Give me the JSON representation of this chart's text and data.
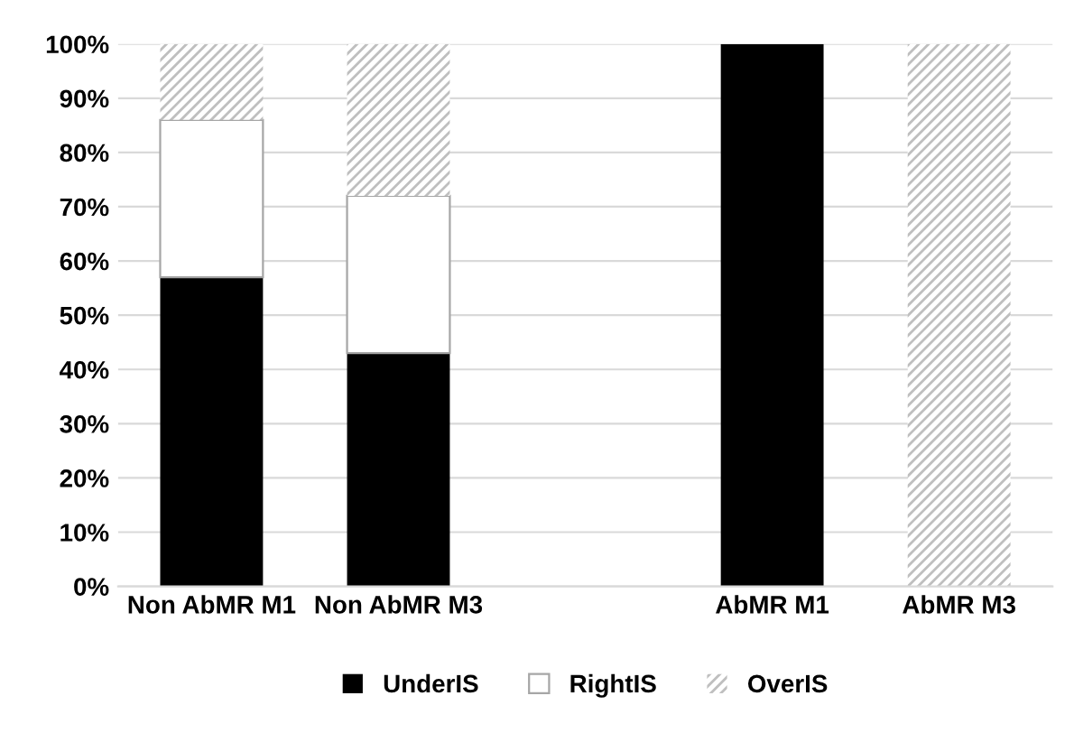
{
  "chart_data": {
    "type": "bar",
    "stacked": true,
    "categories": [
      "Non AbMR M1",
      "Non AbMR M3",
      null,
      "AbMR M1",
      "AbMR M3"
    ],
    "series": [
      {
        "name": "UnderIS",
        "color": "#000000",
        "values": [
          57,
          43,
          null,
          100,
          0
        ]
      },
      {
        "name": "RightIS",
        "color": "#ffffff",
        "values": [
          29,
          29,
          null,
          0,
          0
        ]
      },
      {
        "name": "OverIS",
        "color": "#bfbfbf",
        "values": [
          14,
          28,
          null,
          0,
          100
        ]
      }
    ],
    "ylim": [
      0,
      100
    ],
    "yticks": [
      {
        "value": 0,
        "label": "0%"
      },
      {
        "value": 10,
        "label": "10%"
      },
      {
        "value": 20,
        "label": "20%"
      },
      {
        "value": 30,
        "label": "30%"
      },
      {
        "value": 40,
        "label": "40%"
      },
      {
        "value": 50,
        "label": "50%"
      },
      {
        "value": 60,
        "label": "60%"
      },
      {
        "value": 70,
        "label": "70%"
      },
      {
        "value": 80,
        "label": "80%"
      },
      {
        "value": 90,
        "label": "90%"
      },
      {
        "value": 100,
        "label": "100%"
      }
    ],
    "grid": "y",
    "legend": "bottom"
  }
}
